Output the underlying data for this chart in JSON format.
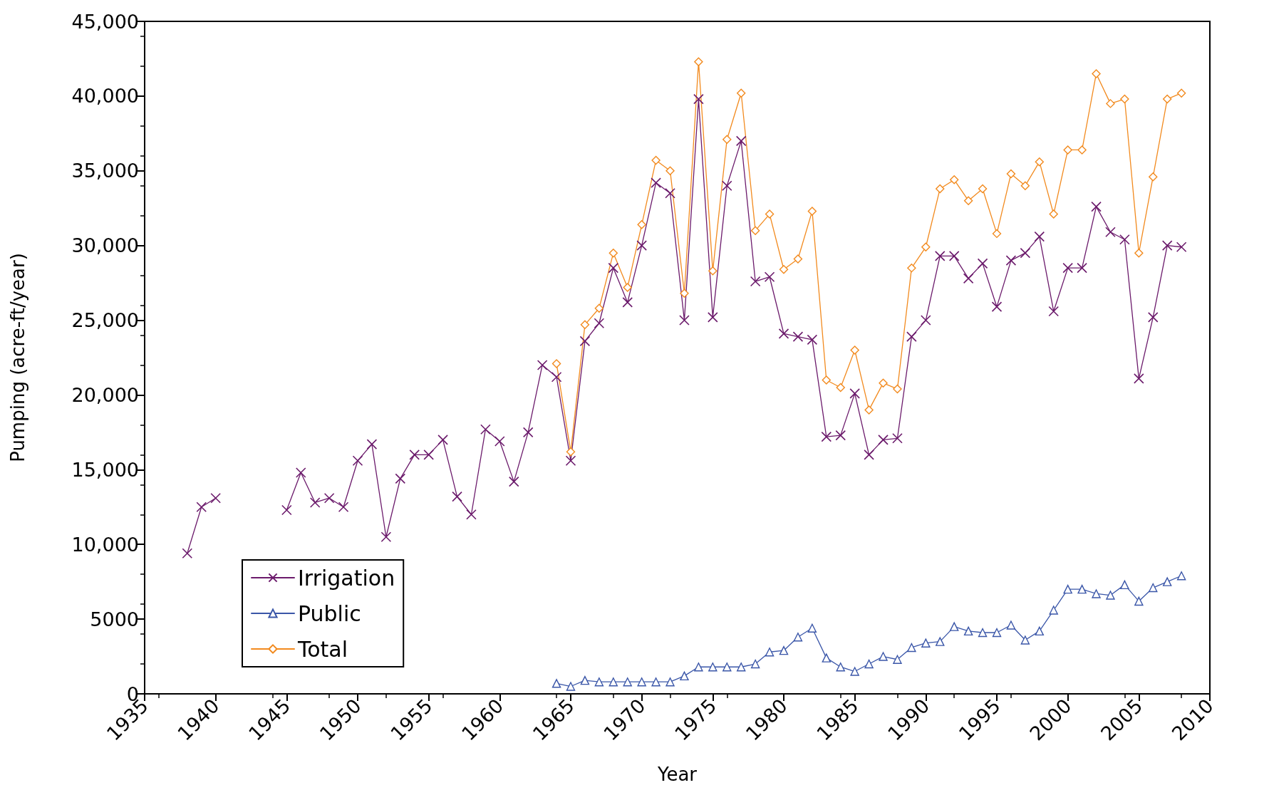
{
  "chart_data": {
    "type": "line",
    "xlabel": "Year",
    "ylabel": "Pumping (acre-ft/year)",
    "xlim": [
      1935,
      2010
    ],
    "xticks": [
      1935,
      1940,
      1945,
      1950,
      1955,
      1960,
      1965,
      1970,
      1975,
      1980,
      1985,
      1990,
      1995,
      2000,
      2005,
      2010
    ],
    "ylim": [
      0,
      45000
    ],
    "yticks": [
      0,
      5000,
      {
        "value": 10000,
        "label": "10,000"
      },
      {
        "value": 15000,
        "label": "15,000"
      },
      {
        "value": 20000,
        "label": "20,000"
      },
      {
        "value": 25000,
        "label": "25,000"
      },
      {
        "value": 30000,
        "label": "30,000"
      },
      {
        "value": 35000,
        "label": "35,000"
      },
      {
        "value": 40000,
        "label": "40,000"
      },
      {
        "value": 45000,
        "label": "45,000"
      }
    ],
    "grid": false,
    "legend": "bottom left",
    "line_style": "solid",
    "series": [
      {
        "name": "Irrigation",
        "color": "#6b1a6b",
        "marker": "cross",
        "x": [
          1938,
          1939,
          1940,
          1941,
          1942,
          1943,
          1944,
          1945,
          1946,
          1947,
          1948,
          1949,
          1950,
          1951,
          1952,
          1953,
          1954,
          1955,
          1956,
          1957,
          1958,
          1959,
          1960,
          1961,
          1962,
          1963,
          1964,
          1965,
          1966,
          1967,
          1968,
          1969,
          1970,
          1971,
          1972,
          1973,
          1974,
          1975,
          1976,
          1977,
          1978,
          1979,
          1980,
          1981,
          1982,
          1983,
          1984,
          1985,
          1986,
          1987,
          1988,
          1989,
          1990,
          1991,
          1992,
          1993,
          1994,
          1995,
          1996,
          1997,
          1998,
          1999,
          2000,
          2001,
          2002,
          2003,
          2004,
          2005,
          2006,
          2007,
          2008
        ],
        "values": [
          9400,
          12500,
          13100,
          null,
          null,
          null,
          null,
          12300,
          14800,
          12800,
          13100,
          12500,
          15600,
          16700,
          10500,
          14400,
          16000,
          16000,
          17000,
          13200,
          12000,
          17700,
          16900,
          14200,
          17500,
          22000,
          21200,
          15600,
          23600,
          24800,
          28500,
          26200,
          30000,
          34200,
          33500,
          25000,
          39800,
          25200,
          34000,
          37000,
          27600,
          27900,
          24100,
          23900,
          23700,
          17200,
          17300,
          20100,
          16000,
          17000,
          17100,
          23900,
          25000,
          29300,
          29300,
          27800,
          28800,
          25900,
          29000,
          29500,
          30600,
          25600,
          28500,
          28500,
          32600,
          30900,
          30400,
          21100,
          25200,
          30000,
          29900
        ]
      },
      {
        "name": "Public",
        "color": "#3a56a8",
        "marker": "triangle",
        "x": [
          1964,
          1965,
          1966,
          1967,
          1968,
          1969,
          1970,
          1971,
          1972,
          1973,
          1974,
          1975,
          1976,
          1977,
          1978,
          1979,
          1980,
          1981,
          1982,
          1983,
          1984,
          1985,
          1986,
          1987,
          1988,
          1989,
          1990,
          1991,
          1992,
          1993,
          1994,
          1995,
          1996,
          1997,
          1998,
          1999,
          2000,
          2001,
          2002,
          2003,
          2004,
          2005,
          2006,
          2007,
          2008
        ],
        "values": [
          700,
          500,
          900,
          800,
          800,
          800,
          800,
          800,
          800,
          1200,
          1800,
          1800,
          1800,
          1800,
          2000,
          2800,
          2900,
          3800,
          4400,
          2400,
          1800,
          1500,
          2000,
          2500,
          2300,
          3100,
          3400,
          3500,
          4500,
          4200,
          4100,
          4100,
          4600,
          3600,
          4200,
          5600,
          7000,
          7000,
          6700,
          6600,
          7300,
          6200,
          7100,
          7500,
          7900
        ]
      },
      {
        "name": "Total",
        "color": "#f28a1e",
        "marker": "diamond",
        "x": [
          1964,
          1965,
          1966,
          1967,
          1968,
          1969,
          1970,
          1971,
          1972,
          1973,
          1974,
          1975,
          1976,
          1977,
          1978,
          1979,
          1980,
          1981,
          1982,
          1983,
          1984,
          1985,
          1986,
          1987,
          1988,
          1989,
          1990,
          1991,
          1992,
          1993,
          1994,
          1995,
          1996,
          1997,
          1998,
          1999,
          2000,
          2001,
          2002,
          2003,
          2004,
          2005,
          2006,
          2007,
          2008
        ],
        "values": [
          22100,
          16200,
          24700,
          25800,
          29500,
          27200,
          31400,
          35700,
          35000,
          26800,
          42300,
          28300,
          37100,
          40200,
          31000,
          32100,
          28400,
          29100,
          32300,
          21000,
          20500,
          23000,
          19000,
          20800,
          20400,
          28500,
          29900,
          33800,
          34400,
          33000,
          33800,
          30800,
          34800,
          34000,
          35600,
          32100,
          36400,
          36400,
          41500,
          39500,
          39800,
          29500,
          34600,
          39800,
          40200
        ]
      }
    ]
  }
}
